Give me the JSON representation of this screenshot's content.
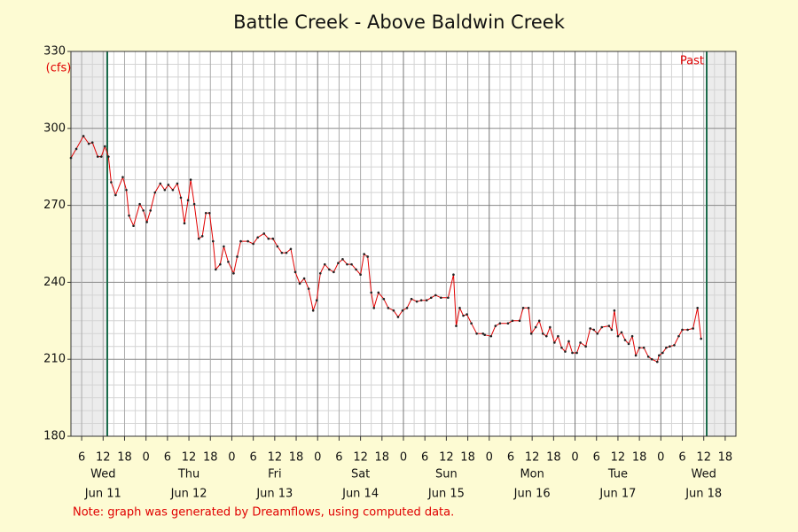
{
  "chart_data": {
    "type": "line",
    "title": "Battle Creek - Above Baldwin Creek",
    "y_label": "(cfs)",
    "note": "Note: graph was generated by Dreamflows, using computed data.",
    "annotation": "Past",
    "color": "#e00000",
    "grid": true,
    "ylim": [
      180,
      330
    ],
    "yticks": [
      180,
      210,
      240,
      270,
      300,
      330
    ],
    "xlim": [
      "Jun 11 03:00",
      "Jun 18 21:00"
    ],
    "xticks": [
      {
        "value": "Jun 11 06:00",
        "label": "6"
      },
      {
        "value": "Jun 11 12:00",
        "label": "12"
      },
      {
        "value": "Jun 11 18:00",
        "label": "18"
      },
      {
        "value": "Jun 12 00:00",
        "label": "0"
      },
      {
        "value": "Jun 12 06:00",
        "label": "6"
      },
      {
        "value": "Jun 12 12:00",
        "label": "12"
      },
      {
        "value": "Jun 12 18:00",
        "label": "18"
      },
      {
        "value": "Jun 13 00:00",
        "label": "0"
      },
      {
        "value": "Jun 13 06:00",
        "label": "6"
      },
      {
        "value": "Jun 13 12:00",
        "label": "12"
      },
      {
        "value": "Jun 13 18:00",
        "label": "18"
      },
      {
        "value": "Jun 14 00:00",
        "label": "0"
      },
      {
        "value": "Jun 14 06:00",
        "label": "6"
      },
      {
        "value": "Jun 14 12:00",
        "label": "12"
      },
      {
        "value": "Jun 14 18:00",
        "label": "18"
      },
      {
        "value": "Jun 15 00:00",
        "label": "0"
      },
      {
        "value": "Jun 15 06:00",
        "label": "6"
      },
      {
        "value": "Jun 15 12:00",
        "label": "12"
      },
      {
        "value": "Jun 15 18:00",
        "label": "18"
      },
      {
        "value": "Jun 16 00:00",
        "label": "0"
      },
      {
        "value": "Jun 16 06:00",
        "label": "6"
      },
      {
        "value": "Jun 16 12:00",
        "label": "12"
      },
      {
        "value": "Jun 16 18:00",
        "label": "18"
      },
      {
        "value": "Jun 17 00:00",
        "label": "0"
      },
      {
        "value": "Jun 17 06:00",
        "label": "6"
      },
      {
        "value": "Jun 17 12:00",
        "label": "12"
      },
      {
        "value": "Jun 17 18:00",
        "label": "18"
      },
      {
        "value": "Jun 18 00:00",
        "label": "0"
      },
      {
        "value": "Jun 18 06:00",
        "label": "6"
      },
      {
        "value": "Jun 18 12:00",
        "label": "12"
      },
      {
        "value": "Jun 18 18:00",
        "label": "18"
      }
    ],
    "day_labels": [
      {
        "value": "Jun 11 12:00",
        "weekday": "Wed",
        "date": "Jun 11"
      },
      {
        "value": "Jun 12 12:00",
        "weekday": "Thu",
        "date": "Jun 12"
      },
      {
        "value": "Jun 13 12:00",
        "weekday": "Fri",
        "date": "Jun 13"
      },
      {
        "value": "Jun 14 12:00",
        "weekday": "Sat",
        "date": "Jun 14"
      },
      {
        "value": "Jun 15 12:00",
        "weekday": "Sun",
        "date": "Jun 15"
      },
      {
        "value": "Jun 16 12:00",
        "weekday": "Mon",
        "date": "Jun 16"
      },
      {
        "value": "Jun 17 12:00",
        "weekday": "Tue",
        "date": "Jun 17"
      },
      {
        "value": "Jun 18 12:00",
        "weekday": "Wed",
        "date": "Jun 18"
      }
    ],
    "x": [
      "Jun 11 03:00",
      "Jun 11 04:30",
      "Jun 11 06:30",
      "Jun 11 08:00",
      "Jun 11 09:00",
      "Jun 11 10:30",
      "Jun 11 11:30",
      "Jun 11 12:30",
      "Jun 11 13:30",
      "Jun 11 14:15",
      "Jun 11 15:30",
      "Jun 11 17:30",
      "Jun 11 18:30",
      "Jun 11 19:15",
      "Jun 11 20:30",
      "Jun 11 22:15",
      "Jun 11 23:15",
      "Jun 12 00:15",
      "Jun 12 01:15",
      "Jun 12 02:30",
      "Jun 12 04:00",
      "Jun 12 05:15",
      "Jun 12 06:15",
      "Jun 12 07:30",
      "Jun 12 08:45",
      "Jun 12 09:45",
      "Jun 12 10:45",
      "Jun 12 11:45",
      "Jun 12 12:30",
      "Jun 12 13:30",
      "Jun 12 14:45",
      "Jun 12 15:45",
      "Jun 12 16:45",
      "Jun 12 17:45",
      "Jun 12 18:45",
      "Jun 12 19:30",
      "Jun 12 20:45",
      "Jun 12 21:45",
      "Jun 12 23:00",
      "Jun 13 00:30",
      "Jun 13 01:30",
      "Jun 13 02:30",
      "Jun 13 04:30",
      "Jun 13 06:00",
      "Jun 13 07:15",
      "Jun 13 09:00",
      "Jun 13 10:15",
      "Jun 13 11:30",
      "Jun 13 12:45",
      "Jun 13 14:00",
      "Jun 13 15:15",
      "Jun 13 16:30",
      "Jun 13 17:45",
      "Jun 13 19:00",
      "Jun 13 20:15",
      "Jun 13 21:30",
      "Jun 13 22:45",
      "Jun 13 23:45",
      "Jun 14 00:45",
      "Jun 14 02:00",
      "Jun 14 03:15",
      "Jun 14 04:30",
      "Jun 14 05:45",
      "Jun 14 07:00",
      "Jun 14 08:15",
      "Jun 14 09:30",
      "Jun 14 10:45",
      "Jun 14 12:00",
      "Jun 14 13:00",
      "Jun 14 14:00",
      "Jun 14 15:00",
      "Jun 14 15:45",
      "Jun 14 17:00",
      "Jun 14 18:30",
      "Jun 14 19:45",
      "Jun 14 21:15",
      "Jun 14 22:30",
      "Jun 14 23:45",
      "Jun 15 01:00",
      "Jun 15 02:15",
      "Jun 15 03:45",
      "Jun 15 05:00",
      "Jun 15 06:30",
      "Jun 15 07:45",
      "Jun 15 09:00",
      "Jun 15 10:30",
      "Jun 15 12:30",
      "Jun 15 14:00",
      "Jun 15 14:45",
      "Jun 15 15:45",
      "Jun 15 16:45",
      "Jun 15 17:45",
      "Jun 15 19:00",
      "Jun 15 20:30",
      "Jun 15 22:15",
      "Jun 15 22:45",
      "Jun 16 00:30",
      "Jun 16 01:45",
      "Jun 16 03:00",
      "Jun 16 05:15",
      "Jun 16 06:30",
      "Jun 16 08:30",
      "Jun 16 09:30",
      "Jun 16 11:00",
      "Jun 16 11:45",
      "Jun 16 13:00",
      "Jun 16 14:00",
      "Jun 16 15:00",
      "Jun 16 16:00",
      "Jun 16 17:00",
      "Jun 16 18:15",
      "Jun 16 19:15",
      "Jun 16 20:15",
      "Jun 16 21:15",
      "Jun 16 22:15",
      "Jun 16 23:15",
      "Jun 17 00:30",
      "Jun 17 01:30",
      "Jun 17 03:00",
      "Jun 17 04:15",
      "Jun 17 05:15",
      "Jun 17 06:15",
      "Jun 17 07:30",
      "Jun 17 09:30",
      "Jun 17 10:15",
      "Jun 17 11:00",
      "Jun 17 12:00",
      "Jun 17 13:00",
      "Jun 17 14:00",
      "Jun 17 15:00",
      "Jun 17 16:00",
      "Jun 17 17:00",
      "Jun 17 18:00",
      "Jun 17 19:15",
      "Jun 17 20:30",
      "Jun 17 21:30",
      "Jun 17 23:00",
      "Jun 17 23:30",
      "Jun 18 00:30",
      "Jun 18 01:30",
      "Jun 18 02:30",
      "Jun 18 03:45",
      "Jun 18 05:00",
      "Jun 18 06:00",
      "Jun 18 07:30",
      "Jun 18 09:00",
      "Jun 18 10:15",
      "Jun 18 11:15"
    ],
    "values": [
      288.5,
      292,
      297,
      294,
      294.5,
      289,
      289,
      293,
      289,
      279,
      274,
      281,
      276,
      266,
      262,
      270.5,
      268,
      263.5,
      268,
      275,
      278.5,
      276,
      278,
      276,
      278.5,
      273,
      263,
      272,
      280,
      270.5,
      257,
      258,
      267,
      267,
      256,
      245,
      247,
      254,
      248,
      243.5,
      250,
      256,
      256,
      255,
      257.5,
      259,
      257,
      257,
      254,
      251.5,
      251.5,
      253,
      244,
      239.5,
      241.5,
      237.5,
      229,
      233,
      243.5,
      247,
      245,
      244,
      247.5,
      249,
      247,
      247,
      245,
      243,
      251,
      250,
      236,
      230,
      236,
      233.5,
      230,
      229,
      226.5,
      229,
      230,
      233.5,
      232.5,
      233,
      233,
      234,
      235,
      234,
      234,
      243,
      223,
      230,
      227,
      227.5,
      224,
      220,
      220,
      219.5,
      219,
      223,
      224,
      224,
      225,
      225,
      230,
      230,
      220,
      222.5,
      225,
      220,
      219,
      222.5,
      216.5,
      219,
      214.5,
      213,
      217,
      212.5,
      212.5,
      216.5,
      215,
      222,
      221.5,
      220,
      222.5,
      223,
      221.5,
      229,
      219,
      220.5,
      217.5,
      216,
      219,
      211.5,
      214.5,
      214.5,
      211,
      210,
      209,
      211.5,
      212.5,
      214.5,
      215,
      215.5,
      219,
      221.5,
      221.5,
      222,
      230,
      218
    ]
  }
}
